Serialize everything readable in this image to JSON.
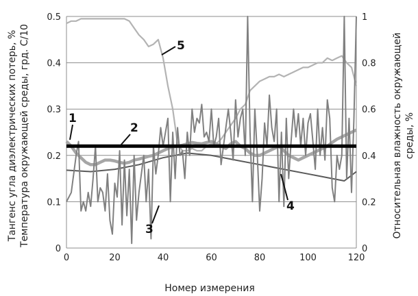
{
  "chart_data": {
    "type": "line",
    "title": "",
    "xlabel": "Номер измерения",
    "ylabel_left": [
      "Тангенс угла диэлектрических потерь, %",
      "Температура окружающей среды, грд. С/10"
    ],
    "ylabel_right": [
      "Относительная влажность окружающей",
      "среды, %"
    ],
    "xlim": [
      0,
      120
    ],
    "ylim_left": [
      0,
      0.5
    ],
    "ylim_right": [
      0,
      1
    ],
    "x_ticks": [
      "0",
      "20",
      "40",
      "60",
      "80",
      "100",
      "120"
    ],
    "y_left_ticks": [
      "0",
      "0.1",
      "0.2",
      "0.3",
      "0.4",
      "0.5"
    ],
    "y_right_ticks": [
      "0",
      "0.2",
      "0.4",
      "0.6",
      "0.8",
      "1"
    ],
    "grid": true,
    "legend": "none",
    "series": [
      {
        "label": "1",
        "axis": "left",
        "color": "#a6a6a6",
        "x": [
          0,
          2,
          4,
          6,
          8,
          10,
          12,
          14,
          16,
          18,
          20,
          22,
          24,
          26,
          28,
          30,
          32,
          34,
          36,
          38,
          40,
          42,
          44,
          46,
          48,
          50,
          52,
          54,
          56,
          58,
          60,
          62,
          64,
          66,
          68,
          70,
          72,
          74,
          76,
          78,
          80,
          82,
          84,
          86,
          88,
          90,
          92,
          94,
          96,
          98,
          100,
          102,
          104,
          106,
          108,
          110,
          112,
          114,
          116,
          118,
          120
        ],
        "values": [
          0.23,
          0.22,
          0.205,
          0.195,
          0.185,
          0.18,
          0.18,
          0.185,
          0.19,
          0.19,
          0.188,
          0.185,
          0.183,
          0.185,
          0.19,
          0.192,
          0.195,
          0.198,
          0.2,
          0.205,
          0.21,
          0.215,
          0.218,
          0.22,
          0.222,
          0.225,
          0.228,
          0.226,
          0.225,
          0.228,
          0.23,
          0.225,
          0.22,
          0.215,
          0.225,
          0.23,
          0.22,
          0.215,
          0.205,
          0.2,
          0.2,
          0.205,
          0.21,
          0.215,
          0.22,
          0.21,
          0.2,
          0.195,
          0.19,
          0.195,
          0.2,
          0.205,
          0.21,
          0.215,
          0.22,
          0.228,
          0.235,
          0.24,
          0.245,
          0.25,
          0.255
        ]
      },
      {
        "label": "2",
        "axis": "left",
        "color": "#000000",
        "x": [
          0,
          120
        ],
        "values": [
          0.22,
          0.22
        ]
      },
      {
        "label": "3",
        "axis": "left",
        "color": "#808080",
        "x": [
          0,
          2,
          4,
          5,
          6,
          7,
          8,
          9,
          10,
          11,
          12,
          13,
          14,
          15,
          16,
          17,
          18,
          19,
          20,
          21,
          22,
          23,
          24,
          25,
          26,
          27,
          28,
          29,
          30,
          31,
          32,
          33,
          34,
          35,
          36,
          37,
          38,
          39,
          40,
          41,
          42,
          43,
          44,
          45,
          46,
          47,
          48,
          49,
          50,
          51,
          52,
          53,
          54,
          55,
          56,
          57,
          58,
          59,
          60,
          61,
          62,
          63,
          64,
          65,
          66,
          67,
          68,
          69,
          70,
          71,
          72,
          73,
          74,
          75,
          76,
          77,
          78,
          79,
          80,
          81,
          82,
          83,
          84,
          85,
          86,
          87,
          88,
          89,
          90,
          91,
          92,
          93,
          94,
          95,
          96,
          97,
          98,
          99,
          100,
          101,
          102,
          103,
          104,
          105,
          106,
          107,
          108,
          109,
          110,
          111,
          112,
          113,
          114,
          115,
          116,
          117,
          118,
          119,
          120
        ],
        "values": [
          0.1,
          0.12,
          0.2,
          0.23,
          0.08,
          0.1,
          0.08,
          0.12,
          0.09,
          0.15,
          0.22,
          0.1,
          0.13,
          0.12,
          0.08,
          0.16,
          0.06,
          0.03,
          0.14,
          0.11,
          0.21,
          0.05,
          0.19,
          0.07,
          0.17,
          0.01,
          0.2,
          0.06,
          0.12,
          0.16,
          0.2,
          0.1,
          0.17,
          0.02,
          0.22,
          0.16,
          0.2,
          0.26,
          0.22,
          0.25,
          0.28,
          0.1,
          0.25,
          0.15,
          0.26,
          0.2,
          0.21,
          0.15,
          0.25,
          0.2,
          0.3,
          0.25,
          0.28,
          0.27,
          0.31,
          0.24,
          0.25,
          0.23,
          0.3,
          0.22,
          0.24,
          0.28,
          0.18,
          0.22,
          0.26,
          0.3,
          0.25,
          0.19,
          0.32,
          0.24,
          0.28,
          0.3,
          0.2,
          0.5,
          0.25,
          0.1,
          0.3,
          0.2,
          0.08,
          0.15,
          0.27,
          0.22,
          0.33,
          0.26,
          0.23,
          0.3,
          0.1,
          0.25,
          0.09,
          0.28,
          0.15,
          0.23,
          0.3,
          0.24,
          0.29,
          0.22,
          0.28,
          0.2,
          0.27,
          0.29,
          0.23,
          0.17,
          0.3,
          0.2,
          0.26,
          0.19,
          0.32,
          0.28,
          0.13,
          0.1,
          0.2,
          0.17,
          0.2,
          0.5,
          0.15,
          0.28,
          0.12,
          0.28,
          0.5
        ]
      },
      {
        "label": "4",
        "axis": "left",
        "color": "#595959",
        "x": [
          0,
          10,
          20,
          30,
          40,
          50,
          60,
          70,
          80,
          90,
          100,
          110,
          115,
          120
        ],
        "values": [
          0.168,
          0.165,
          0.17,
          0.18,
          0.195,
          0.205,
          0.2,
          0.19,
          0.18,
          0.17,
          0.16,
          0.15,
          0.145,
          0.165
        ]
      },
      {
        "label": "5",
        "axis": "right",
        "color": "#b3b3b3",
        "x": [
          0,
          2,
          4,
          6,
          8,
          10,
          12,
          14,
          16,
          18,
          20,
          22,
          24,
          26,
          28,
          30,
          32,
          34,
          36,
          38,
          40,
          42,
          44,
          46,
          48,
          50,
          52,
          54,
          56,
          58,
          60,
          62,
          64,
          66,
          68,
          70,
          72,
          74,
          76,
          78,
          80,
          82,
          84,
          86,
          88,
          90,
          92,
          94,
          96,
          98,
          100,
          102,
          104,
          106,
          108,
          110,
          112,
          114,
          116,
          118,
          120
        ],
        "values": [
          0.97,
          0.98,
          0.98,
          0.99,
          0.99,
          0.99,
          0.99,
          0.99,
          0.99,
          0.99,
          0.99,
          0.99,
          0.99,
          0.98,
          0.95,
          0.92,
          0.9,
          0.87,
          0.88,
          0.9,
          0.82,
          0.7,
          0.6,
          0.45,
          0.42,
          0.42,
          0.43,
          0.42,
          0.42,
          0.44,
          0.45,
          0.45,
          0.47,
          0.5,
          0.53,
          0.56,
          0.6,
          0.62,
          0.68,
          0.7,
          0.72,
          0.73,
          0.74,
          0.74,
          0.75,
          0.74,
          0.75,
          0.76,
          0.77,
          0.78,
          0.78,
          0.79,
          0.8,
          0.8,
          0.82,
          0.81,
          0.82,
          0.83,
          0.8,
          0.78,
          0.7
        ]
      }
    ],
    "annotations": [
      "1",
      "2",
      "3",
      "4",
      "5"
    ]
  }
}
